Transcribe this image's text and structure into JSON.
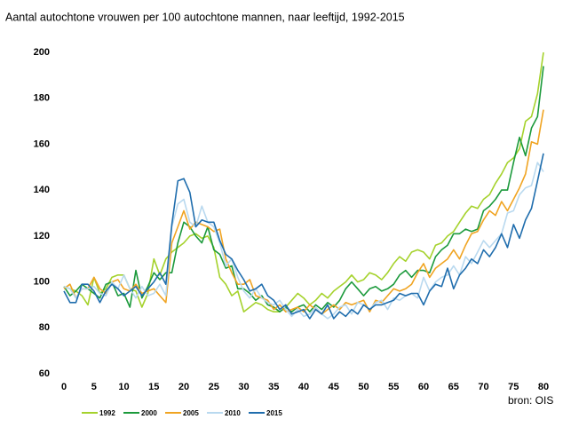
{
  "chart_data": {
    "type": "line",
    "title": "Aantal autochtone vrouwen per 100 autochtone mannen, naar leeftijd, 1992-2015",
    "annotation": "bron:  OIS",
    "x": [
      0,
      1,
      2,
      3,
      4,
      5,
      6,
      7,
      8,
      9,
      10,
      11,
      12,
      13,
      14,
      15,
      16,
      17,
      18,
      19,
      20,
      21,
      22,
      23,
      24,
      25,
      26,
      27,
      28,
      29,
      30,
      31,
      32,
      33,
      34,
      35,
      36,
      37,
      38,
      39,
      40,
      41,
      42,
      43,
      44,
      45,
      46,
      47,
      48,
      49,
      50,
      51,
      52,
      53,
      54,
      55,
      56,
      57,
      58,
      59,
      60,
      61,
      62,
      63,
      64,
      65,
      66,
      67,
      68,
      69,
      70,
      71,
      72,
      73,
      74,
      75,
      76,
      77,
      78,
      79,
      80
    ],
    "xlim": [
      0,
      80
    ],
    "xticks": [
      0,
      5,
      10,
      15,
      20,
      25,
      30,
      35,
      40,
      45,
      50,
      55,
      60,
      65,
      70,
      75,
      80
    ],
    "ylim": [
      60,
      200
    ],
    "yticks": [
      60,
      80,
      100,
      120,
      140,
      160,
      180,
      200
    ],
    "grid": false,
    "series": [
      {
        "name": "1992",
        "color": "#a5d22c",
        "values": [
          98,
          97,
          96,
          94,
          90,
          102,
          95,
          97,
          102,
          103,
          103,
          97,
          96,
          89,
          95,
          110,
          103,
          110,
          113,
          115,
          117,
          120,
          121,
          119,
          120,
          115,
          102,
          99,
          94,
          96,
          87,
          89,
          91,
          90,
          88,
          87,
          87,
          89,
          92,
          95,
          93,
          90,
          92,
          95,
          93,
          96,
          98,
          100,
          103,
          100,
          101,
          104,
          103,
          101,
          104,
          108,
          111,
          109,
          113,
          114,
          113,
          110,
          116,
          117,
          120,
          122,
          126,
          130,
          133,
          132,
          136,
          138,
          143,
          147,
          152,
          154,
          158,
          170,
          172,
          182,
          200
        ]
      },
      {
        "name": "2000",
        "color": "#1c9a3c",
        "values": [
          98,
          94,
          96,
          99,
          97,
          95,
          93,
          99,
          100,
          94,
          95,
          89,
          105,
          93,
          98,
          104,
          101,
          104,
          104,
          117,
          126,
          124,
          120,
          117,
          124,
          114,
          112,
          106,
          107,
          97,
          97,
          95,
          92,
          94,
          90,
          89,
          87,
          89,
          87,
          89,
          90,
          87,
          90,
          88,
          91,
          89,
          92,
          97,
          100,
          97,
          94,
          97,
          98,
          96,
          97,
          99,
          103,
          105,
          102,
          105,
          105,
          104,
          111,
          114,
          116,
          121,
          121,
          123,
          122,
          123,
          131,
          133,
          136,
          140,
          140,
          152,
          163,
          155,
          167,
          172,
          194
        ]
      },
      {
        "name": "2005",
        "color": "#f0a422",
        "values": [
          97,
          99,
          93,
          97,
          97,
          102,
          97,
          95,
          100,
          101,
          97,
          96,
          99,
          95,
          96,
          97,
          94,
          91,
          117,
          124,
          131,
          123,
          126,
          125,
          124,
          122,
          123,
          110,
          104,
          99,
          99,
          101,
          94,
          93,
          92,
          88,
          90,
          87,
          88,
          89,
          87,
          90,
          88,
          86,
          88,
          90,
          88,
          91,
          90,
          91,
          92,
          87,
          92,
          91,
          94,
          97,
          96,
          97,
          99,
          104,
          108,
          102,
          106,
          108,
          110,
          114,
          110,
          116,
          121,
          122,
          127,
          131,
          129,
          135,
          131,
          136,
          141,
          147,
          161,
          160,
          175
        ]
      },
      {
        "name": "2010",
        "color": "#b9d9ef",
        "values": [
          98,
          97,
          93,
          97,
          97,
          98,
          95,
          94,
          100,
          97,
          103,
          97,
          93,
          98,
          94,
          95,
          99,
          94,
          124,
          134,
          136,
          126,
          124,
          133,
          126,
          124,
          117,
          107,
          110,
          102,
          96,
          93,
          97,
          93,
          91,
          90,
          92,
          88,
          85,
          88,
          85,
          86,
          89,
          86,
          84,
          86,
          89,
          90,
          86,
          91,
          90,
          88,
          91,
          92,
          88,
          93,
          92,
          94,
          95,
          93,
          102,
          96,
          100,
          102,
          103,
          107,
          103,
          111,
          108,
          113,
          118,
          115,
          118,
          121,
          130,
          131,
          138,
          141,
          142,
          152,
          148
        ]
      },
      {
        "name": "2015",
        "color": "#1f6dad",
        "values": [
          96,
          91,
          91,
          99,
          99,
          96,
          91,
          96,
          99,
          97,
          94,
          96,
          98,
          94,
          97,
          100,
          104,
          99,
          125,
          144,
          145,
          139,
          124,
          127,
          126,
          126,
          118,
          112,
          110,
          105,
          101,
          96,
          97,
          99,
          94,
          92,
          88,
          90,
          86,
          87,
          88,
          84,
          88,
          86,
          90,
          84,
          87,
          85,
          88,
          86,
          90,
          88,
          90,
          90,
          91,
          92,
          95,
          94,
          95,
          95,
          90,
          96,
          99,
          98,
          106,
          97,
          103,
          106,
          110,
          108,
          114,
          111,
          115,
          121,
          115,
          125,
          119,
          127,
          132,
          144,
          156
        ]
      }
    ]
  }
}
